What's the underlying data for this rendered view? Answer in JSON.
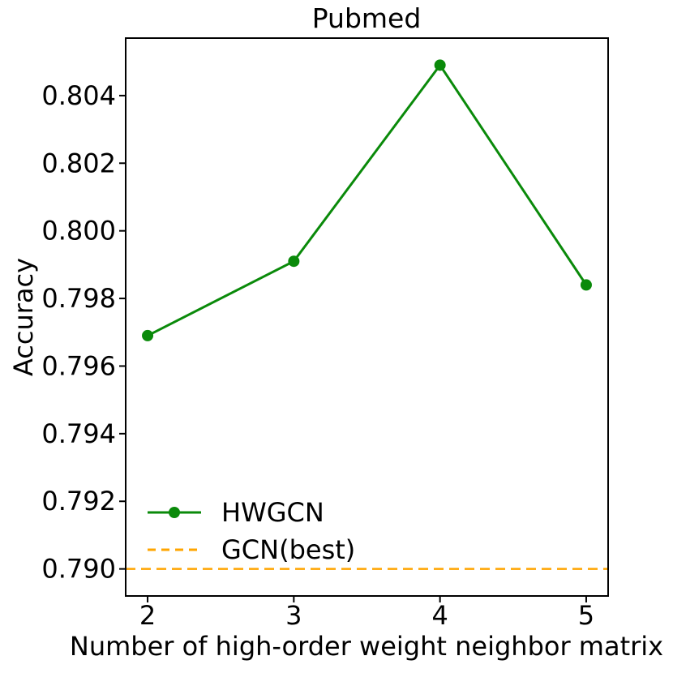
{
  "chart_data": {
    "type": "line",
    "title": "Pubmed",
    "xlabel": "Number of high-order weight neighbor matrix",
    "ylabel": "Accuracy",
    "x": [
      2,
      3,
      4,
      5
    ],
    "series": [
      {
        "name": "HWGCN",
        "kind": "line",
        "values": [
          0.7969,
          0.7991,
          0.8049,
          0.7984
        ],
        "color": "#0a8a0a",
        "style": "solid",
        "marker": "circle"
      },
      {
        "name": "GCN(best)",
        "kind": "hline",
        "value": 0.79,
        "color": "#ffa500",
        "style": "dashed",
        "marker": "none"
      }
    ],
    "xlim": [
      1.85,
      5.15
    ],
    "ylim": [
      0.7892,
      0.8057
    ],
    "xticks": [
      2,
      3,
      4,
      5
    ],
    "yticks": [
      0.79,
      0.792,
      0.794,
      0.796,
      0.798,
      0.8,
      0.802,
      0.804
    ],
    "ytick_decimals": 3,
    "grid": false,
    "legend_position": "lower left",
    "axis_color": "#000000",
    "background_color": "#ffffff"
  }
}
